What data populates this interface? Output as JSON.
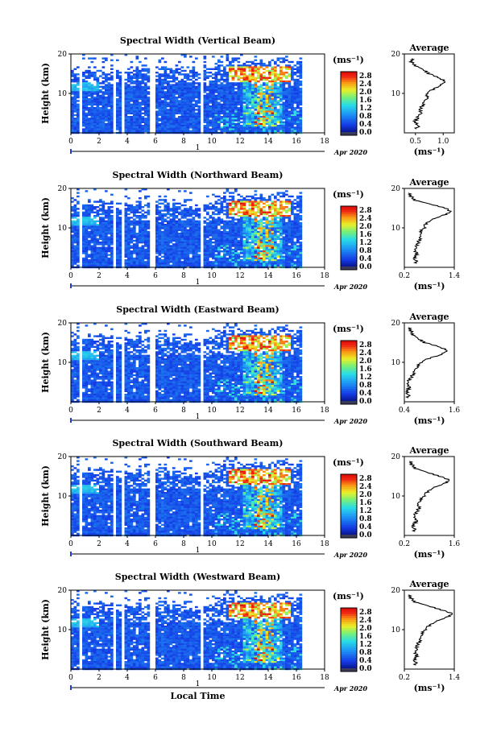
{
  "chart_data": [
    {
      "type": "heatmap",
      "title": "Spectral Width (Vertical Beam)",
      "ylabel": "Height (km)",
      "ylim": [
        0,
        20
      ],
      "yticks": [
        10,
        20
      ],
      "xlim": [
        0,
        18
      ],
      "xticks": [
        0,
        2,
        4,
        6,
        8,
        10,
        12,
        14,
        16,
        18
      ],
      "date_label": "1",
      "date_suffix": "Apr 2020",
      "colorbar": {
        "unit": "(ms⁻¹)",
        "ticks": [
          "2.8",
          "2.4",
          "2.0",
          "1.6",
          "1.2",
          "0.8",
          "0.4",
          "0.0"
        ],
        "min": 0.0,
        "max": 3.0
      },
      "average": {
        "title": "Average",
        "xlabel": "(ms⁻¹)",
        "xticks": [
          "0.5",
          "1.0"
        ],
        "xlim": [
          0.3,
          1.2
        ],
        "profile": [
          [
            1,
            0.52
          ],
          [
            2,
            0.55
          ],
          [
            3,
            0.5
          ],
          [
            4,
            0.55
          ],
          [
            5,
            0.62
          ],
          [
            6,
            0.58
          ],
          [
            7,
            0.62
          ],
          [
            8,
            0.66
          ],
          [
            9,
            0.72
          ],
          [
            10,
            0.7
          ],
          [
            11,
            0.82
          ],
          [
            12,
            0.95
          ],
          [
            13,
            1.05
          ],
          [
            14,
            0.9
          ],
          [
            15,
            0.75
          ],
          [
            16,
            0.62
          ],
          [
            17,
            0.5
          ],
          [
            18,
            0.42
          ],
          [
            19,
            0.45
          ]
        ]
      }
    },
    {
      "type": "heatmap",
      "title": "Spectral Width (Northward Beam)",
      "ylabel": "Height (km)",
      "ylim": [
        0,
        20
      ],
      "yticks": [
        10,
        20
      ],
      "xlim": [
        0,
        18
      ],
      "xticks": [
        0,
        2,
        4,
        6,
        8,
        10,
        12,
        14,
        16,
        18
      ],
      "date_label": "1",
      "date_suffix": "Apr 2020",
      "colorbar": {
        "unit": "(ms⁻¹)",
        "ticks": [
          "2.8",
          "2.4",
          "2.0",
          "1.6",
          "1.2",
          "0.8",
          "0.4",
          "0.0"
        ],
        "min": 0.0,
        "max": 3.0
      },
      "average": {
        "title": "Average",
        "xlabel": "(ms⁻¹)",
        "xticks": [
          "0.2",
          "1.4"
        ],
        "xlim": [
          0.2,
          1.4
        ],
        "profile": [
          [
            1,
            0.5
          ],
          [
            2,
            0.45
          ],
          [
            3,
            0.5
          ],
          [
            4,
            0.48
          ],
          [
            5,
            0.5
          ],
          [
            6,
            0.52
          ],
          [
            7,
            0.55
          ],
          [
            8,
            0.6
          ],
          [
            9,
            0.58
          ],
          [
            10,
            0.68
          ],
          [
            11,
            0.72
          ],
          [
            12,
            0.85
          ],
          [
            13,
            1.1
          ],
          [
            14,
            1.3
          ],
          [
            15,
            1.2
          ],
          [
            16,
            0.8
          ],
          [
            17,
            0.45
          ],
          [
            18,
            0.35
          ],
          [
            19,
            0.3
          ]
        ]
      }
    },
    {
      "type": "heatmap",
      "title": "Spectral Width (Eastward Beam)",
      "ylabel": "Height (km)",
      "ylim": [
        0,
        20
      ],
      "yticks": [
        10,
        20
      ],
      "xlim": [
        0,
        18
      ],
      "xticks": [
        0,
        2,
        4,
        6,
        8,
        10,
        12,
        14,
        16,
        18
      ],
      "date_label": "1",
      "date_suffix": "Apr 2020",
      "colorbar": {
        "unit": "(ms⁻¹)",
        "ticks": [
          "2.8",
          "2.4",
          "2.0",
          "1.6",
          "1.2",
          "0.8",
          "0.4",
          "0.0"
        ],
        "min": 0.0,
        "max": 3.0
      },
      "average": {
        "title": "Average",
        "xlabel": "(ms⁻¹)",
        "xticks": [
          "0.4",
          "1.6"
        ],
        "xlim": [
          0.4,
          1.6
        ],
        "profile": [
          [
            1,
            0.5
          ],
          [
            2,
            0.48
          ],
          [
            3,
            0.5
          ],
          [
            4,
            0.52
          ],
          [
            5,
            0.5
          ],
          [
            6,
            0.55
          ],
          [
            7,
            0.6
          ],
          [
            8,
            0.65
          ],
          [
            9,
            0.72
          ],
          [
            10,
            0.8
          ],
          [
            11,
            1.0
          ],
          [
            12,
            1.3
          ],
          [
            13,
            1.45
          ],
          [
            14,
            1.2
          ],
          [
            15,
            0.9
          ],
          [
            16,
            0.7
          ],
          [
            17,
            0.6
          ],
          [
            18,
            0.55
          ],
          [
            19,
            0.5
          ]
        ]
      }
    },
    {
      "type": "heatmap",
      "title": "Spectral Width (Southward Beam)",
      "ylabel": "Height (km)",
      "ylim": [
        0,
        20
      ],
      "yticks": [
        10,
        20
      ],
      "xlim": [
        0,
        18
      ],
      "xticks": [
        0,
        2,
        4,
        6,
        8,
        10,
        12,
        14,
        16,
        18
      ],
      "date_label": "1",
      "date_suffix": "Apr 2020",
      "colorbar": {
        "unit": "(ms⁻¹)",
        "ticks": [
          "2.8",
          "2.4",
          "2.0",
          "1.6",
          "1.2",
          "0.8",
          "0.4",
          "0.0"
        ],
        "min": 0.0,
        "max": 3.0
      },
      "average": {
        "title": "Average",
        "xlabel": "(ms⁻¹)",
        "xticks": [
          "0.2",
          "1.6"
        ],
        "xlim": [
          0.2,
          1.6
        ],
        "profile": [
          [
            1,
            0.5
          ],
          [
            2,
            0.45
          ],
          [
            3,
            0.5
          ],
          [
            4,
            0.55
          ],
          [
            5,
            0.5
          ],
          [
            6,
            0.55
          ],
          [
            7,
            0.6
          ],
          [
            8,
            0.58
          ],
          [
            9,
            0.65
          ],
          [
            10,
            0.75
          ],
          [
            11,
            0.85
          ],
          [
            12,
            1.0
          ],
          [
            13,
            1.3
          ],
          [
            14,
            1.45
          ],
          [
            15,
            1.2
          ],
          [
            16,
            0.8
          ],
          [
            17,
            0.5
          ],
          [
            18,
            0.4
          ],
          [
            19,
            0.35
          ]
        ]
      }
    },
    {
      "type": "heatmap",
      "title": "Spectral Width (Westward Beam)",
      "ylabel": "Height (km)",
      "ylim": [
        0,
        20
      ],
      "yticks": [
        10,
        20
      ],
      "xlim": [
        0,
        18
      ],
      "xticks": [
        0,
        2,
        4,
        6,
        8,
        10,
        12,
        14,
        16,
        18
      ],
      "xlabel": "Local Time",
      "date_label": "1",
      "date_suffix": "Apr 2020",
      "colorbar": {
        "unit": "(ms⁻¹)",
        "ticks": [
          "2.8",
          "2.4",
          "2.0",
          "1.6",
          "1.2",
          "0.8",
          "0.4",
          "0.0"
        ],
        "min": 0.0,
        "max": 3.0
      },
      "average": {
        "title": "Average",
        "xlabel": "(ms⁻¹)",
        "xticks": [
          "0.2",
          "1.4"
        ],
        "xlim": [
          0.2,
          1.4
        ],
        "profile": [
          [
            1,
            0.48
          ],
          [
            2,
            0.45
          ],
          [
            3,
            0.5
          ],
          [
            4,
            0.48
          ],
          [
            5,
            0.52
          ],
          [
            6,
            0.5
          ],
          [
            7,
            0.55
          ],
          [
            8,
            0.6
          ],
          [
            9,
            0.62
          ],
          [
            10,
            0.7
          ],
          [
            11,
            0.8
          ],
          [
            12,
            0.95
          ],
          [
            13,
            1.2
          ],
          [
            14,
            1.35
          ],
          [
            15,
            1.1
          ],
          [
            16,
            0.75
          ],
          [
            17,
            0.45
          ],
          [
            18,
            0.35
          ],
          [
            19,
            0.3
          ]
        ]
      }
    }
  ]
}
